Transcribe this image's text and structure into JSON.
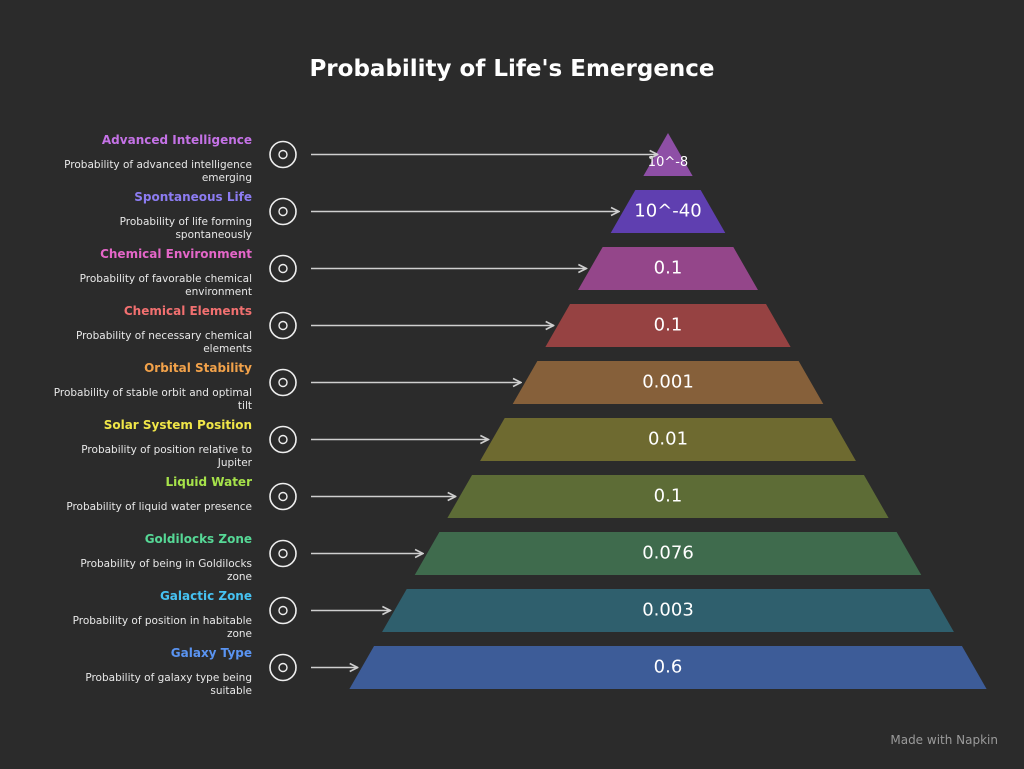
{
  "header": {
    "title": "Probability of Life's Emergence"
  },
  "levels": [
    {
      "name": "Advanced Intelligence",
      "description": "Probability of advanced intelligence emerging",
      "value": "10^-8"
    },
    {
      "name": "Spontaneous Life",
      "description": "Probability of life forming spontaneously",
      "value": "10^-40"
    },
    {
      "name": "Chemical Environment",
      "description": "Probability of favorable chemical environment",
      "value": "0.1"
    },
    {
      "name": "Chemical Elements",
      "description": "Probability of necessary chemical elements",
      "value": "0.1"
    },
    {
      "name": "Orbital Stability",
      "description": "Probability of stable orbit and optimal tilt",
      "value": "0.001"
    },
    {
      "name": "Solar System Position",
      "description": "Probability of position relative to Jupiter",
      "value": "0.01"
    },
    {
      "name": "Liquid Water",
      "description": "Probability of liquid water presence",
      "value": "0.1"
    },
    {
      "name": "Goldilocks Zone",
      "description": "Probability of being in Goldilocks zone",
      "value": "0.076"
    },
    {
      "name": "Galactic Zone",
      "description": "Probability of position in habitable zone",
      "value": "0.003"
    },
    {
      "name": "Galaxy Type",
      "description": "Probability of galaxy type being suitable",
      "value": "0.6"
    }
  ],
  "footer": {
    "text": "Made with Napkin"
  }
}
